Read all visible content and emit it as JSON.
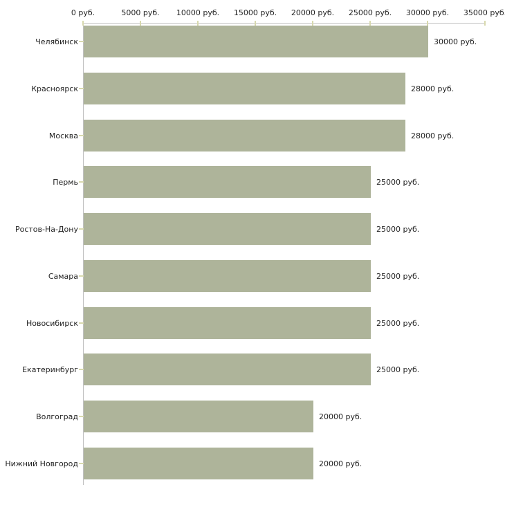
{
  "chart_data": {
    "type": "bar",
    "orientation": "horizontal",
    "title": "",
    "xlabel": "",
    "ylabel": "",
    "unit": "руб.",
    "categories": [
      "Челябинск",
      "Красноярск",
      "Москва",
      "Пермь",
      "Ростов-На-Дону",
      "Самара",
      "Новосибирск",
      "Екатеринбург",
      "Волгоград",
      "Нижний Новгород"
    ],
    "values": [
      30000,
      28000,
      28000,
      25000,
      25000,
      25000,
      25000,
      25000,
      20000,
      20000
    ],
    "value_labels": [
      "30000 руб.",
      "28000 руб.",
      "28000 руб.",
      "25000 руб.",
      "25000 руб.",
      "25000 руб.",
      "25000 руб.",
      "25000 руб.",
      "20000 руб.",
      "20000 руб."
    ],
    "x_ticks": [
      0,
      5000,
      10000,
      15000,
      20000,
      25000,
      30000,
      35000
    ],
    "x_tick_labels": [
      "0 руб.",
      "5000 руб.",
      "10000 руб.",
      "15000 руб.",
      "20000 руб.",
      "25000 руб.",
      "30000 руб.",
      "35000 руб."
    ],
    "xlim": [
      0,
      35000
    ],
    "grid": false,
    "legend": false,
    "axis_position": "top"
  },
  "colors": {
    "bar_fill": "#aeb49a",
    "axis_line": "#c0c0c0",
    "tick_mark": "#d8d9ae",
    "text": "#1f1f1f",
    "background": "#ffffff"
  }
}
